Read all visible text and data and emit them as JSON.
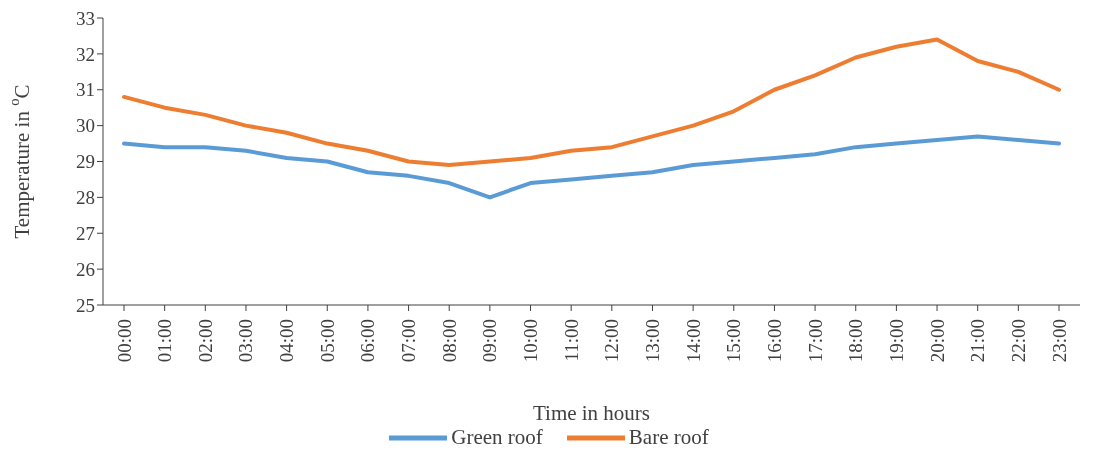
{
  "chart_data": {
    "type": "line",
    "xlabel": "Time in hours",
    "ylabel": "Temperature in $^{o}$C",
    "categories": [
      "00:00",
      "01:00",
      "02:00",
      "03:00",
      "04:00",
      "05:00",
      "06:00",
      "07:00",
      "08:00",
      "09:00",
      "10:00",
      "11:00",
      "12:00",
      "13:00",
      "14:00",
      "15:00",
      "16:00",
      "17:00",
      "18:00",
      "19:00",
      "20:00",
      "21:00",
      "22:00",
      "23:00"
    ],
    "series": [
      {
        "name": "Green roof",
        "color": "#5b9bd5",
        "values": [
          29.5,
          29.4,
          29.4,
          29.3,
          29.1,
          29.0,
          28.7,
          28.6,
          28.4,
          28.0,
          28.4,
          28.5,
          28.6,
          28.7,
          28.9,
          29.0,
          29.1,
          29.2,
          29.4,
          29.5,
          29.6,
          29.7,
          29.6,
          29.5
        ]
      },
      {
        "name": "Bare roof",
        "color": "#ed7d31",
        "values": [
          30.8,
          30.5,
          30.3,
          30.0,
          29.8,
          29.5,
          29.3,
          29.0,
          28.9,
          29.0,
          29.1,
          29.3,
          29.4,
          29.7,
          30.0,
          30.4,
          31.0,
          31.4,
          31.9,
          32.2,
          32.4,
          31.8,
          31.5,
          31.0
        ]
      }
    ],
    "ylim": [
      25,
      33
    ],
    "yticks": [
      25,
      26,
      27,
      28,
      29,
      30,
      31,
      32,
      33
    ],
    "grid": false,
    "legend": "bottom",
    "marker": "none",
    "line_style": "solid"
  }
}
